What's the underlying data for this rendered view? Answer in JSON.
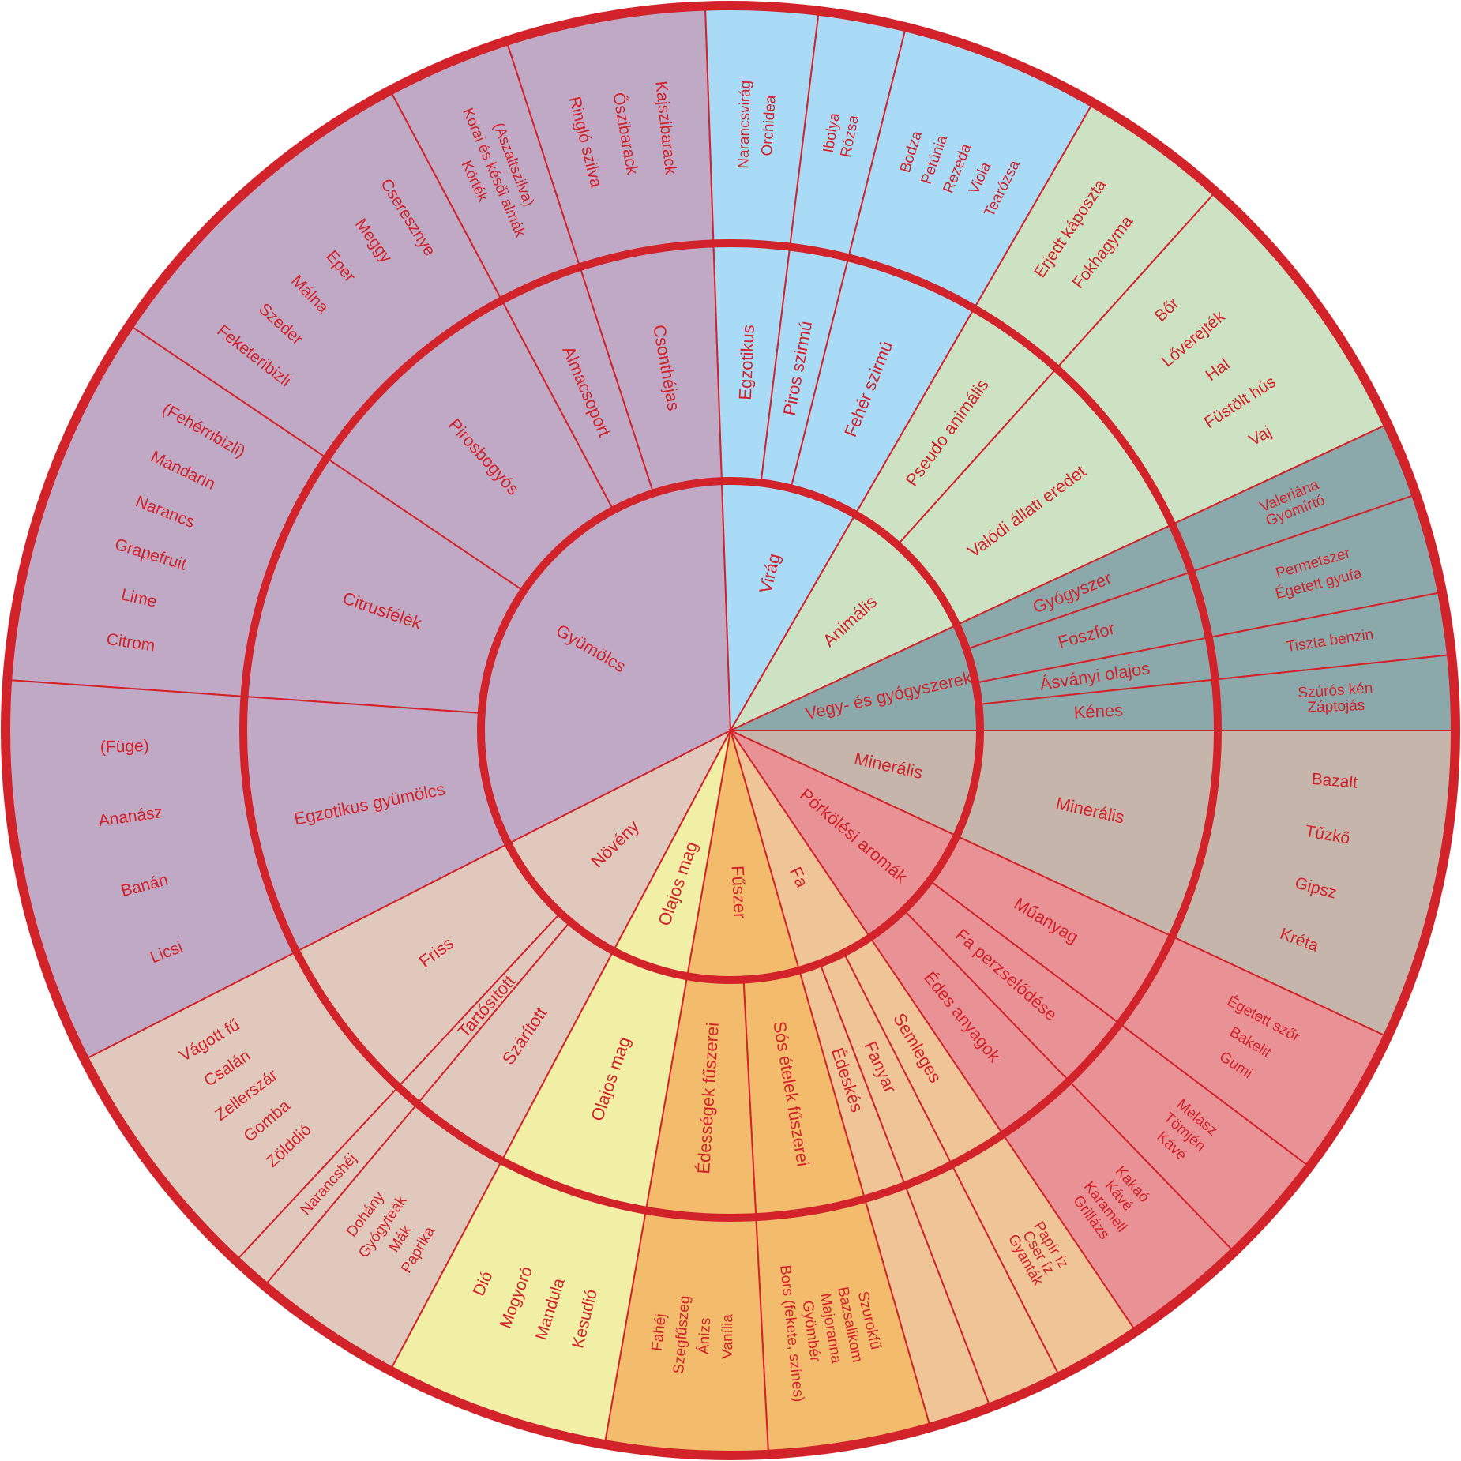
{
  "palette": {
    "gyumolcs": "#bfa9c5",
    "virag": "#a9daf6",
    "animalis": "#cde2c2",
    "vegy": "#8ba9ab",
    "mineralis": "#c6b5aa",
    "porkolesi": "#e99295",
    "fa": "#efc598",
    "fuszer": "#f2bc6c",
    "olajos": "#f1efa5",
    "noveny": "#e0c9bc",
    "line": "#d2232a"
  },
  "wheel": {
    "categories": [
      {
        "label": "Gyümölcs",
        "color": "gyumolcs",
        "subs": [
          {
            "label": "Csonthéjas",
            "items": [
              "Ringló szilva",
              "Őszibarack",
              "Kajszibarack"
            ]
          },
          {
            "label": "Almacsoport",
            "items": [
              "Körték",
              "Korai és késői almák",
              "(Aszaltszilva)"
            ]
          },
          {
            "label": "Pirosbogyós",
            "items": [
              "Feketeribizli",
              "Szeder",
              "Málna",
              "Eper",
              "Meggy",
              "Cseresznye"
            ]
          },
          {
            "label": "Citrusfélék",
            "items": [
              "Citrom",
              "Lime",
              "Grapefruit",
              "Narancs",
              "Mandarin",
              "(Fehérribizli)"
            ]
          },
          {
            "label": "Egzotikus gyümölcs",
            "items": [
              "Licsi",
              "Banán",
              "Ananász",
              "(Füge)"
            ]
          }
        ]
      },
      {
        "label": "Virág",
        "color": "virag",
        "subs": [
          {
            "label": "Egzotikus",
            "items": [
              "Narancsvirág",
              "Orchidea"
            ]
          },
          {
            "label": "Piros szirmú",
            "items": [
              "Ibolya",
              "Rózsa"
            ]
          },
          {
            "label": "Fehér szirmú",
            "items": [
              "Bodza",
              "Petúnia",
              "Rezeda",
              "Viola",
              "Tearózsa"
            ]
          }
        ]
      },
      {
        "label": "Animális",
        "color": "animalis",
        "subs": [
          {
            "label": "Pseudo animális",
            "items": [
              "Erjedt káposzta",
              "Fokhagyma"
            ]
          },
          {
            "label": "Valódi állati eredet",
            "items": [
              "Bőr",
              "Lőverejték",
              "Hal",
              "Füstölt hús",
              "Vaj"
            ]
          }
        ]
      },
      {
        "label": "Vegy- és gyógyszerek",
        "color": "vegy",
        "subs": [
          {
            "label": "Gyógyszer",
            "items": [
              "Valeriána",
              "Gyomírtó"
            ]
          },
          {
            "label": "Foszfor",
            "items": [
              "Permetszer",
              "Égetett gyufa"
            ]
          },
          {
            "label": "Ásványi olajos",
            "items": [
              "Tiszta benzin"
            ]
          },
          {
            "label": "Kénes",
            "items": [
              "Szúrós kén",
              "Záptojás"
            ]
          }
        ]
      },
      {
        "label": "Minerális",
        "color": "mineralis",
        "subs": [
          {
            "label": "Minerális",
            "items": [
              "Bazalt",
              "Tűzkő",
              "Gipsz",
              "Kréta"
            ]
          }
        ]
      },
      {
        "label": "Pörkölési aromák",
        "color": "porkolesi",
        "subs": [
          {
            "label": "Műanyag",
            "items": [
              "Égetett szőr",
              "Bakelit",
              "Gumi"
            ]
          },
          {
            "label": "Fa perzselődése",
            "items": [
              "Melasz",
              "Tömjén",
              "Kávé"
            ]
          },
          {
            "label": "Édes anyagok",
            "items": [
              "Kakaó",
              "Kávé",
              "Karamell",
              "Grillázs"
            ]
          }
        ]
      },
      {
        "label": "Fa",
        "color": "fa",
        "subs": [
          {
            "label": "Semleges",
            "items": [
              "Papír íz",
              "Cser íz",
              "Gyanták"
            ]
          },
          {
            "label": "Fanyar",
            "items": []
          },
          {
            "label": "Édeskés",
            "items": []
          }
        ]
      },
      {
        "label": "Fűszer",
        "color": "fuszer",
        "subs": [
          {
            "label": "Sós ételek fűszerei",
            "items": [
              "Szurokfű",
              "Bazsalikom",
              "Majoranna",
              "Gyömbér",
              "Bors (fekete, színes)"
            ]
          },
          {
            "label": "Édességek fűszerei",
            "items": [
              "Vanília",
              "Ánizs",
              "Szegfűszeg",
              "Fahéj"
            ]
          }
        ]
      },
      {
        "label": "Olajos mag",
        "color": "olajos",
        "subs": [
          {
            "label": "Olajos mag",
            "items": [
              "Kesudió",
              "Mandula",
              "Mogyoró",
              "Dió"
            ]
          }
        ]
      },
      {
        "label": "Növény",
        "color": "noveny",
        "subs": [
          {
            "label": "Szárított",
            "items": [
              "Paprika",
              "Mák",
              "Gyógyteák",
              "Dohány"
            ]
          },
          {
            "label": "Tartósított",
            "items": [
              "Narancshéj"
            ]
          },
          {
            "label": "Friss",
            "items": [
              "Zölddió",
              "Gomba",
              "Zellerszár",
              "Csalán",
              "Vágott fű"
            ]
          }
        ]
      }
    ]
  }
}
